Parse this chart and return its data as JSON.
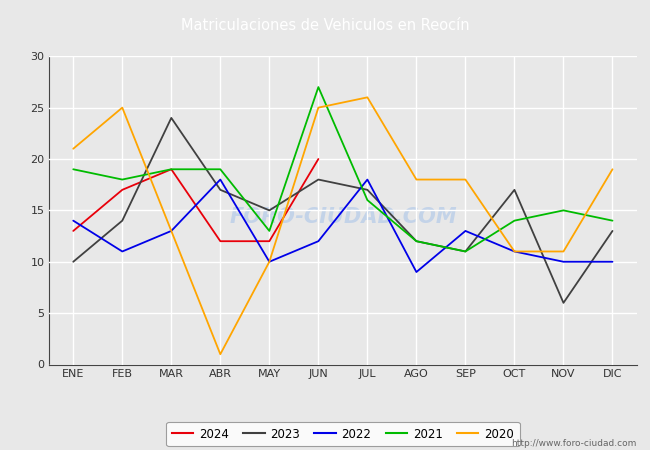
{
  "title": "Matriculaciones de Vehiculos en Reocín",
  "months": [
    "ENE",
    "FEB",
    "MAR",
    "ABR",
    "MAY",
    "JUN",
    "JUL",
    "AGO",
    "SEP",
    "OCT",
    "NOV",
    "DIC"
  ],
  "series": {
    "2024": {
      "color": "#e8000a",
      "data": [
        13,
        17,
        19,
        12,
        12,
        20,
        null,
        null,
        null,
        null,
        null,
        null
      ]
    },
    "2023": {
      "color": "#404040",
      "data": [
        10,
        14,
        24,
        17,
        15,
        18,
        17,
        12,
        11,
        17,
        6,
        13
      ]
    },
    "2022": {
      "color": "#0000e8",
      "data": [
        14,
        11,
        13,
        18,
        10,
        12,
        18,
        9,
        13,
        11,
        10,
        10
      ]
    },
    "2021": {
      "color": "#00bb00",
      "data": [
        19,
        18,
        19,
        19,
        13,
        27,
        16,
        12,
        11,
        14,
        15,
        14
      ]
    },
    "2020": {
      "color": "#ffa500",
      "data": [
        21,
        25,
        13,
        1,
        10,
        25,
        26,
        18,
        18,
        11,
        11,
        19
      ]
    }
  },
  "ylim": [
    0,
    30
  ],
  "yticks": [
    0,
    5,
    10,
    15,
    20,
    25,
    30
  ],
  "watermark": "FORO-CIUDAD.COM",
  "url": "http://www.foro-ciudad.com",
  "bg_color": "#e8e8e8",
  "plot_bg": "#e8e8e8",
  "grid_color": "#ffffff",
  "title_bg": "#5b7fc7",
  "legend_years": [
    "2024",
    "2023",
    "2022",
    "2021",
    "2020"
  ]
}
